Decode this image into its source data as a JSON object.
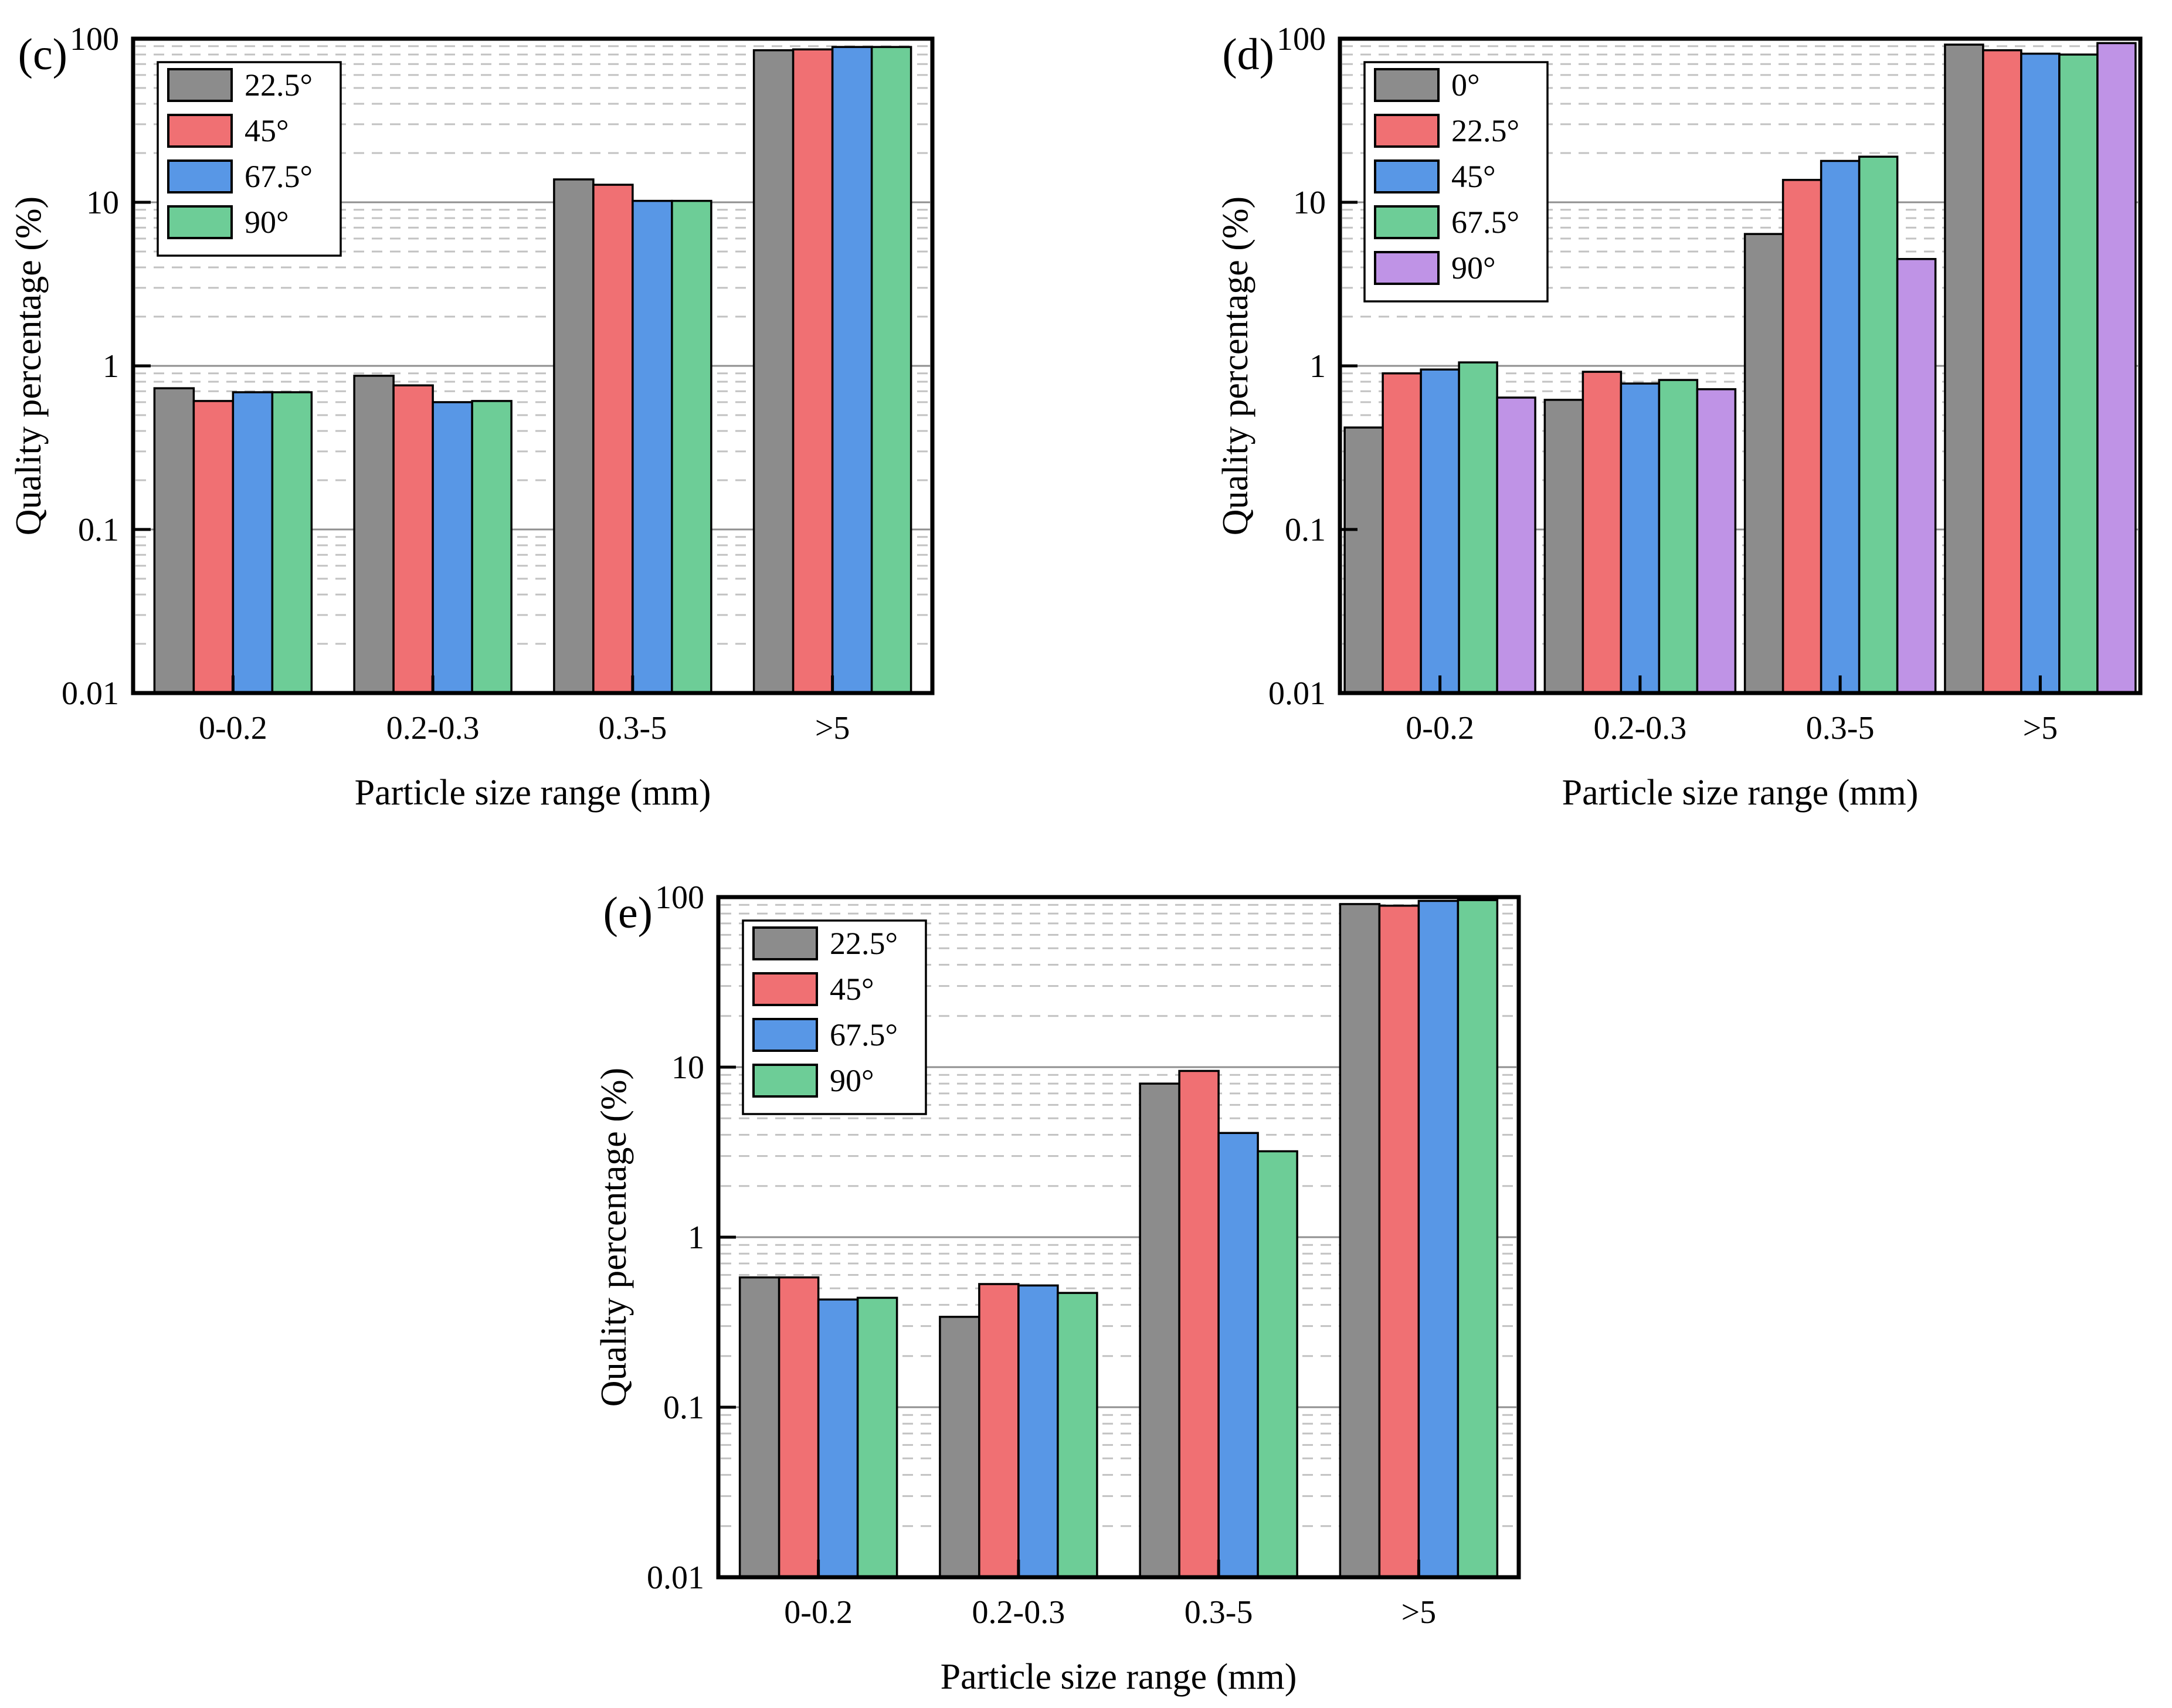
{
  "figure": {
    "background": "#ffffff",
    "frame_color": "#000000",
    "bar_outline_color": "#000000",
    "grid_major_color": "#8f8f8f",
    "grid_minor_color": "#c2c2c2",
    "legend_box_color": "#ffffff",
    "legend_border_color": "#000000"
  },
  "chart_data": [
    {
      "panel_label": "(c)",
      "type": "bar",
      "title": "",
      "xlabel": "Particle size range (mm)",
      "ylabel": "Quality percentage (%)",
      "yscale": "log",
      "ylim": [
        0.01,
        100
      ],
      "ytick_labels": [
        "100",
        "10",
        "1",
        "0.1",
        "0.01"
      ],
      "categories": [
        "0-0.2",
        "0.2-0.3",
        "0.3-5",
        ">5"
      ],
      "grid": {
        "major": "solid",
        "minor": "dashed"
      },
      "legend_position": "upper-left",
      "series": [
        {
          "name": "22.5°",
          "color": "#8C8C8C",
          "values": [
            0.73,
            0.87,
            13.8,
            85
          ]
        },
        {
          "name": "45°",
          "color": "#F07073",
          "values": [
            0.61,
            0.76,
            12.8,
            86
          ]
        },
        {
          "name": "67.5°",
          "color": "#5897E6",
          "values": [
            0.69,
            0.6,
            10.2,
            89
          ]
        },
        {
          "name": "90°",
          "color": "#6DCD97",
          "values": [
            0.69,
            0.61,
            10.2,
            89
          ]
        }
      ]
    },
    {
      "panel_label": "(d)",
      "type": "bar",
      "title": "",
      "xlabel": "Particle size range (mm)",
      "ylabel": "Quality percentage (%)",
      "yscale": "log",
      "ylim": [
        0.01,
        100
      ],
      "ytick_labels": [
        "100",
        "10",
        "1",
        "0.1",
        "0.01"
      ],
      "categories": [
        "0-0.2",
        "0.2-0.3",
        "0.3-5",
        ">5"
      ],
      "grid": {
        "major": "solid",
        "minor": "dashed"
      },
      "legend_position": "upper-left",
      "series": [
        {
          "name": "0°",
          "color": "#8C8C8C",
          "values": [
            0.42,
            0.62,
            6.4,
            92
          ]
        },
        {
          "name": "22.5°",
          "color": "#F07073",
          "values": [
            0.9,
            0.92,
            13.7,
            85
          ]
        },
        {
          "name": "45°",
          "color": "#5897E6",
          "values": [
            0.95,
            0.78,
            17.9,
            81
          ]
        },
        {
          "name": "67.5°",
          "color": "#6DCD97",
          "values": [
            1.05,
            0.82,
            19.0,
            80
          ]
        },
        {
          "name": "90°",
          "color": "#BF93E6",
          "values": [
            0.64,
            0.72,
            4.5,
            94
          ]
        }
      ]
    },
    {
      "panel_label": "(e)",
      "type": "bar",
      "title": "",
      "xlabel": "Particle size range (mm)",
      "ylabel": "Quality percentage (%)",
      "yscale": "log",
      "ylim": [
        0.01,
        100
      ],
      "ytick_labels": [
        "100",
        "10",
        "1",
        "0.1",
        "0.01"
      ],
      "categories": [
        "0-0.2",
        "0.2-0.3",
        "0.3-5",
        ">5"
      ],
      "grid": {
        "major": "solid",
        "minor": "dashed"
      },
      "legend_position": "upper-left",
      "series": [
        {
          "name": "22.5°",
          "color": "#8C8C8C",
          "values": [
            0.58,
            0.34,
            8.0,
            91
          ]
        },
        {
          "name": "45°",
          "color": "#F07073",
          "values": [
            0.58,
            0.53,
            9.5,
            89
          ]
        },
        {
          "name": "67.5°",
          "color": "#5897E6",
          "values": [
            0.43,
            0.52,
            4.1,
            95
          ]
        },
        {
          "name": "90°",
          "color": "#6DCD97",
          "values": [
            0.44,
            0.47,
            3.2,
            96
          ]
        }
      ]
    }
  ]
}
